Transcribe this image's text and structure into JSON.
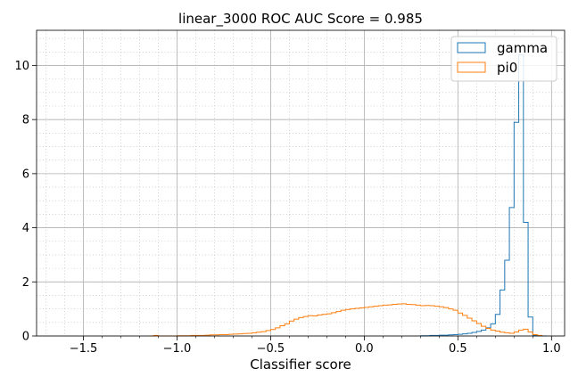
{
  "chart_data": {
    "type": "histogram",
    "title": "linear_3000 ROC AUC Score = 0.985",
    "xlabel": "Classifier score",
    "ylabel": "",
    "xlim": [
      -1.75,
      1.07
    ],
    "ylim": [
      0,
      11.3
    ],
    "xticks": [
      -1.5,
      -1.0,
      -0.5,
      0.0,
      0.5,
      1.0
    ],
    "xtick_labels": [
      "−1.5",
      "−1.0",
      "−0.5",
      "0.0",
      "0.5",
      "1.0"
    ],
    "yticks": [
      0,
      2,
      4,
      6,
      8,
      10
    ],
    "ytick_labels": [
      "0",
      "2",
      "4",
      "6",
      "8",
      "10"
    ],
    "grid": true,
    "minor_grid": true,
    "legend_position": "top-right",
    "bin_width": 0.025,
    "series": [
      {
        "name": "gamma",
        "color": "#1f77b4",
        "x": [
          0.3,
          0.325,
          0.35,
          0.375,
          0.4,
          0.425,
          0.45,
          0.475,
          0.5,
          0.525,
          0.55,
          0.575,
          0.6,
          0.625,
          0.65,
          0.675,
          0.7,
          0.725,
          0.75,
          0.775,
          0.8,
          0.825,
          0.85,
          0.875,
          0.9,
          0.925,
          0.95
        ],
        "values": [
          0.01,
          0.01,
          0.02,
          0.02,
          0.03,
          0.03,
          0.04,
          0.05,
          0.06,
          0.08,
          0.1,
          0.13,
          0.17,
          0.22,
          0.3,
          0.45,
          0.8,
          1.7,
          2.8,
          4.75,
          7.9,
          10.4,
          4.2,
          0.7,
          0.03,
          0.0,
          0.0
        ]
      },
      {
        "name": "pi0",
        "color": "#ff7f0e",
        "x": [
          -1.15,
          -1.125,
          -1.1,
          -1.075,
          -1.05,
          -1.025,
          -1.0,
          -0.975,
          -0.95,
          -0.925,
          -0.9,
          -0.875,
          -0.85,
          -0.825,
          -0.8,
          -0.775,
          -0.75,
          -0.725,
          -0.7,
          -0.675,
          -0.65,
          -0.625,
          -0.6,
          -0.575,
          -0.55,
          -0.525,
          -0.5,
          -0.475,
          -0.45,
          -0.425,
          -0.4,
          -0.375,
          -0.35,
          -0.325,
          -0.3,
          -0.275,
          -0.25,
          -0.225,
          -0.2,
          -0.175,
          -0.15,
          -0.125,
          -0.1,
          -0.075,
          -0.05,
          -0.025,
          0.0,
          0.025,
          0.05,
          0.075,
          0.1,
          0.125,
          0.15,
          0.175,
          0.2,
          0.225,
          0.25,
          0.275,
          0.3,
          0.325,
          0.35,
          0.375,
          0.4,
          0.425,
          0.45,
          0.475,
          0.5,
          0.525,
          0.55,
          0.575,
          0.6,
          0.625,
          0.65,
          0.675,
          0.7,
          0.725,
          0.75,
          0.775,
          0.8,
          0.825,
          0.85,
          0.875,
          0.9,
          0.925
        ],
        "values": [
          0.0,
          0.02,
          0.0,
          0.0,
          0.0,
          0.0,
          0.01,
          0.01,
          0.01,
          0.02,
          0.02,
          0.02,
          0.03,
          0.04,
          0.04,
          0.05,
          0.05,
          0.06,
          0.07,
          0.08,
          0.09,
          0.1,
          0.12,
          0.14,
          0.16,
          0.2,
          0.24,
          0.3,
          0.38,
          0.45,
          0.55,
          0.62,
          0.68,
          0.72,
          0.75,
          0.74,
          0.78,
          0.8,
          0.82,
          0.86,
          0.9,
          0.95,
          0.98,
          1.0,
          1.02,
          1.04,
          1.06,
          1.08,
          1.1,
          1.12,
          1.14,
          1.15,
          1.17,
          1.18,
          1.19,
          1.17,
          1.16,
          1.14,
          1.12,
          1.13,
          1.12,
          1.1,
          1.08,
          1.05,
          1.0,
          0.95,
          0.85,
          0.76,
          0.66,
          0.56,
          0.46,
          0.36,
          0.28,
          0.22,
          0.18,
          0.14,
          0.12,
          0.1,
          0.15,
          0.22,
          0.25,
          0.15,
          0.05,
          0.02
        ]
      }
    ]
  }
}
